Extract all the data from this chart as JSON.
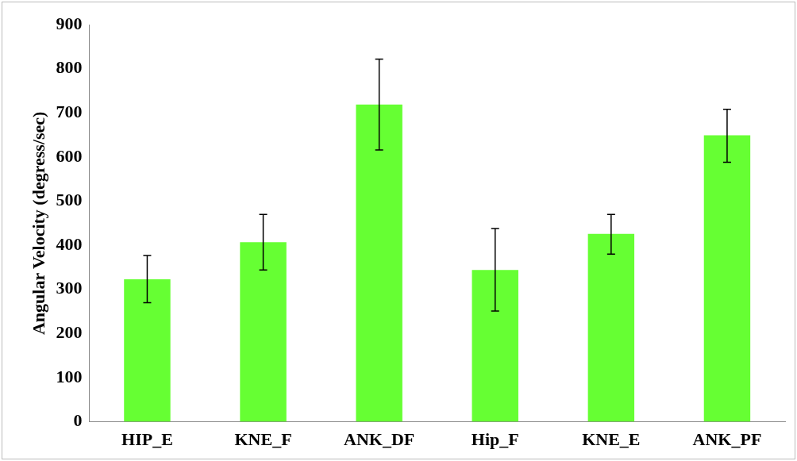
{
  "chart_data": {
    "type": "bar",
    "ylabel": "Angular Velocity (degress/sec)",
    "categories": [
      "HIP_E",
      "KNE_F",
      "ANK_DF",
      "Hip_F",
      "KNE_E",
      "ANK_PF"
    ],
    "values": [
      323,
      407,
      719,
      344,
      426,
      649
    ],
    "errors": [
      [
        270,
        377
      ],
      [
        344,
        470
      ],
      [
        616,
        822
      ],
      [
        251,
        438
      ],
      [
        380,
        470
      ],
      [
        588,
        708
      ]
    ],
    "color": "#66ff33",
    "ylim": [
      0,
      900
    ],
    "yticks": [
      0,
      100,
      200,
      300,
      400,
      500,
      600,
      700,
      800,
      900
    ],
    "grid": false,
    "legend": false
  }
}
